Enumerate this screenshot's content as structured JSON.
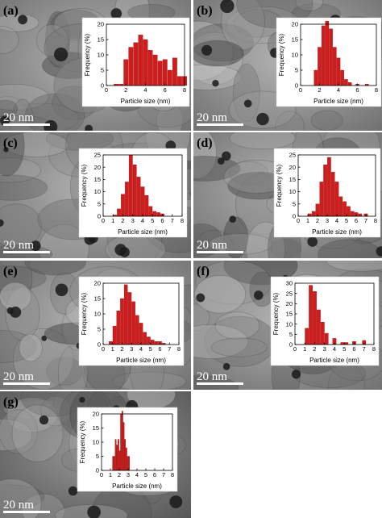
{
  "figure": {
    "bar_color": "#d21c1c",
    "scale_bar_label": "20 nm"
  },
  "chart_data": [
    {
      "panel": "(a)",
      "type": "bar",
      "xlabel": "Particle size (nm)",
      "ylabel": "Frequency (%)",
      "xlim": [
        0,
        8
      ],
      "ylim": [
        0,
        20
      ],
      "xticks": [
        0,
        2,
        4,
        6,
        8
      ],
      "yticks": [
        0,
        5,
        10,
        15,
        20
      ],
      "bin_width": 0.5,
      "x": [
        1.0,
        1.5,
        2.0,
        2.5,
        3.0,
        3.5,
        4.0,
        4.5,
        5.0,
        5.5,
        6.0,
        6.5,
        7.0,
        7.5,
        8.0
      ],
      "values": [
        0.5,
        0.5,
        8.5,
        12.5,
        14,
        16.5,
        15,
        11.5,
        10,
        8,
        8.5,
        5,
        9,
        3,
        3
      ]
    },
    {
      "panel": "(b)",
      "type": "bar",
      "xlabel": "Particle size (nm)",
      "ylabel": "Frequency (%)",
      "xlim": [
        0,
        8
      ],
      "ylim": [
        0,
        20
      ],
      "xticks": [
        0,
        2,
        4,
        6,
        8
      ],
      "yticks": [
        0,
        5,
        10,
        15,
        20
      ],
      "bin_width": 0.4,
      "x": [
        1.6,
        2.0,
        2.4,
        2.8,
        3.2,
        3.6,
        4.0,
        4.4,
        4.8,
        5.2,
        6.0,
        7.0
      ],
      "values": [
        5,
        12.5,
        19.5,
        21,
        18.5,
        12.5,
        9,
        5,
        2,
        1,
        0.5,
        0.5
      ]
    },
    {
      "panel": "(c)",
      "type": "bar",
      "xlabel": "Particle size (nm)",
      "ylabel": "Frequency (%)",
      "xlim": [
        0,
        8
      ],
      "ylim": [
        0,
        25
      ],
      "xticks": [
        0,
        1,
        2,
        3,
        4,
        5,
        6,
        7,
        8
      ],
      "yticks": [
        0,
        5,
        10,
        15,
        20,
        25
      ],
      "bin_width": 0.4,
      "x": [
        1.2,
        1.6,
        2.0,
        2.4,
        2.8,
        3.2,
        3.6,
        4.0,
        4.4,
        4.8,
        5.2,
        5.6,
        6.0
      ],
      "values": [
        0.5,
        3,
        9,
        14,
        25,
        21,
        16,
        12,
        8.5,
        4,
        2,
        1.5,
        1
      ]
    },
    {
      "panel": "(d)",
      "type": "bar",
      "xlabel": "Particle size (nm)",
      "ylabel": "Frequency (%)",
      "xlim": [
        0,
        8
      ],
      "ylim": [
        0,
        25
      ],
      "xticks": [
        0,
        1,
        2,
        3,
        4,
        5,
        6,
        7,
        8
      ],
      "yticks": [
        0,
        5,
        10,
        15,
        20,
        25
      ],
      "bin_width": 0.4,
      "x": [
        1.2,
        1.6,
        2.0,
        2.4,
        2.8,
        3.2,
        3.6,
        4.0,
        4.4,
        4.8,
        5.2,
        5.6,
        6.0,
        6.4,
        7.0
      ],
      "values": [
        1,
        2,
        5,
        14,
        21,
        24,
        18,
        14,
        8,
        6,
        4,
        2,
        1.5,
        1,
        1
      ]
    },
    {
      "panel": "(e)",
      "type": "bar",
      "xlabel": "Particle size (nm)",
      "ylabel": "Frequency (%)",
      "xlim": [
        0,
        8
      ],
      "ylim": [
        0,
        20
      ],
      "xticks": [
        0,
        1,
        2,
        3,
        4,
        5,
        6,
        7,
        8
      ],
      "yticks": [
        0,
        5,
        10,
        15,
        20
      ],
      "bin_width": 0.4,
      "x": [
        0.8,
        1.2,
        1.6,
        2.0,
        2.4,
        2.8,
        3.2,
        3.6,
        4.0,
        4.4,
        4.8,
        5.2,
        5.6,
        6.0,
        6.4
      ],
      "values": [
        1,
        6,
        11,
        15,
        19.5,
        17,
        14,
        9.5,
        7,
        4,
        2.5,
        1.5,
        1,
        1,
        0.5
      ]
    },
    {
      "panel": "(f)",
      "type": "bar",
      "xlabel": "Particle size (nm)",
      "ylabel": "Frequency (%)",
      "xlim": [
        0,
        8
      ],
      "ylim": [
        0,
        30
      ],
      "xticks": [
        0,
        1,
        2,
        3,
        4,
        5,
        6,
        7,
        8
      ],
      "yticks": [
        0,
        5,
        10,
        15,
        20,
        25,
        30
      ],
      "bin_width": 0.4,
      "x": [
        1.2,
        1.6,
        2.0,
        2.4,
        2.8,
        3.2,
        4.0,
        4.8,
        5.2,
        6.0,
        7.0
      ],
      "values": [
        8,
        29,
        26,
        17,
        11,
        5.5,
        3,
        1,
        1,
        1.5,
        2
      ]
    },
    {
      "panel": "(g)",
      "type": "bar",
      "xlabel": "Particle size (nm)",
      "ylabel": "Frequency (%)",
      "xlim": [
        0,
        8
      ],
      "ylim": [
        0,
        20
      ],
      "xticks": [
        0,
        1,
        2,
        3,
        4,
        5,
        6,
        7,
        8
      ],
      "yticks": [
        0,
        5,
        10,
        15,
        20
      ],
      "bin_width": 0.15,
      "x": [
        1.3,
        1.45,
        1.6,
        1.75,
        1.9,
        2.05,
        2.2,
        2.35,
        2.5,
        2.65,
        2.8,
        2.95,
        3.1
      ],
      "values": [
        5,
        5,
        11,
        9,
        11,
        7,
        20,
        21,
        17,
        11,
        8,
        5,
        5
      ]
    }
  ]
}
